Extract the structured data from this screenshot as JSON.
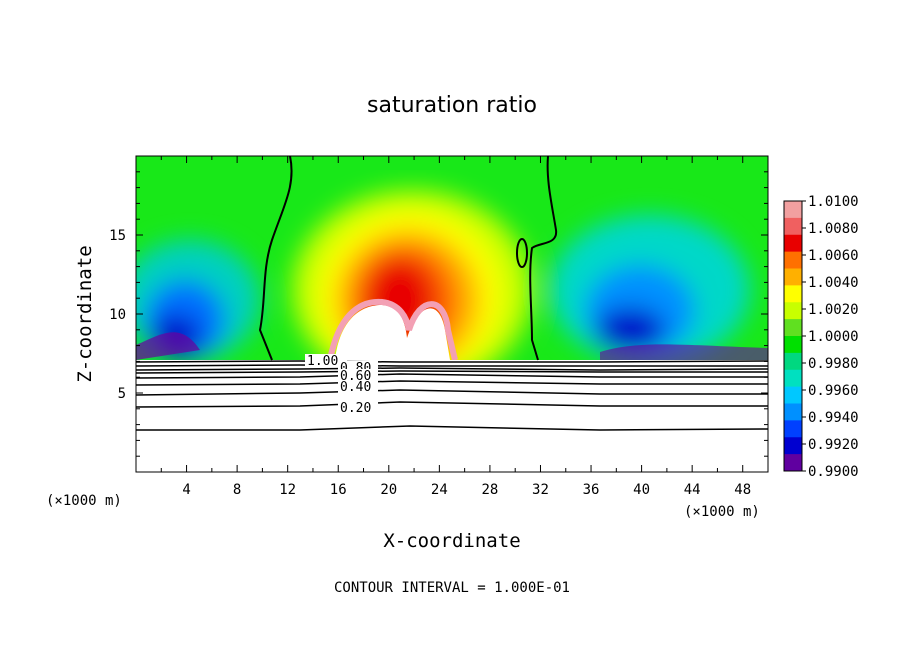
{
  "chart_data": {
    "type": "contour",
    "title": "saturation ratio",
    "xlabel": "X-coordinate",
    "ylabel": "Z-coordinate",
    "x_unit_left": "(×1000 m)",
    "x_unit_right": "(×1000 m)",
    "xlim": [
      0,
      50
    ],
    "ylim": [
      0,
      20
    ],
    "x_ticks": [
      "4",
      "8",
      "12",
      "16",
      "20",
      "24",
      "28",
      "32",
      "36",
      "40",
      "44",
      "48"
    ],
    "y_ticks": [
      "5",
      "10",
      "15"
    ],
    "contour_interval_text": "CONTOUR INTERVAL = 1.000E-01",
    "contour_labels": [
      "1.00",
      "0.80",
      "0.60",
      "0.40",
      "0.20"
    ],
    "colorbar": {
      "min": 0.99,
      "max": 1.01,
      "labels": [
        "1.0100",
        "1.0080",
        "1.0060",
        "1.0040",
        "1.0020",
        "1.0000",
        "0.9980",
        "0.9960",
        "0.9940",
        "0.9920",
        "0.9900"
      ],
      "colors": [
        "#f2a0a0",
        "#f06060",
        "#e80000",
        "#ff7000",
        "#ffb000",
        "#ffff00",
        "#c8ff00",
        "#60e020",
        "#00e000",
        "#00d880",
        "#00e0c0",
        "#00c8ff",
        "#0090ff",
        "#0040ff",
        "#0000d0",
        "#6000a0"
      ]
    },
    "saturated_line_x": [
      [
        9.5,
        7.2
      ],
      [
        10,
        9
      ],
      [
        10.3,
        11
      ],
      [
        10.5,
        13
      ],
      [
        11,
        15
      ],
      [
        11.5,
        17
      ],
      [
        12,
        19
      ],
      [
        12.2,
        20
      ]
    ]
  }
}
